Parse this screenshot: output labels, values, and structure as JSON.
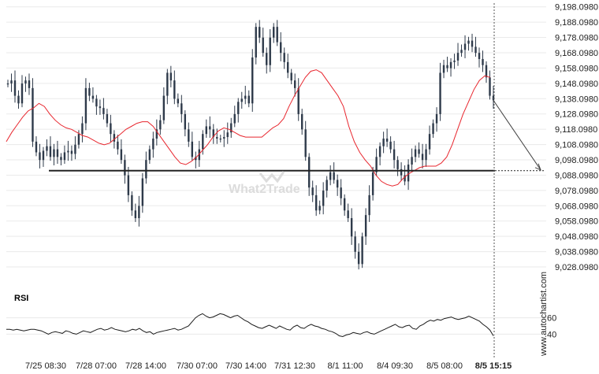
{
  "chart_data": [
    {
      "type": "candlestick",
      "x_tick_labels": [
        "7/25 08:30",
        "7/28 07:00",
        "7/28 14:00",
        "7/30 07:00",
        "7/30 14:00",
        "7/31 12:30",
        "8/1 11:00",
        "8/4 09:30",
        "8/5 08:00",
        "8/5 15:15"
      ],
      "y_tick_labels": [
        "9,198.0980",
        "9,188.0980",
        "9,178.0980",
        "9,168.0980",
        "9,158.0980",
        "9,148.0980",
        "9,138.0980",
        "9,128.0980",
        "9,118.0980",
        "9,108.0980",
        "9,098.0980",
        "9,088.0980",
        "9,078.0980",
        "9,068.0980",
        "9,058.0980",
        "9,048.0980",
        "9,038.0980",
        "9,028.0980"
      ],
      "ylim": [
        9024,
        9200
      ],
      "price_path": [
        9148,
        9150,
        9140,
        9135,
        9148,
        9150,
        9145,
        9110,
        9103,
        9098,
        9104,
        9107,
        9100,
        9105,
        9100,
        9098,
        9103,
        9104,
        9102,
        9108,
        9115,
        9122,
        9145,
        9140,
        9138,
        9133,
        9132,
        9128,
        9122,
        9115,
        9110,
        9105,
        9098,
        9088,
        9075,
        9065,
        9060,
        9068,
        9086,
        9098,
        9105,
        9112,
        9118,
        9124,
        9140,
        9155,
        9150,
        9138,
        9135,
        9128,
        9118,
        9110,
        9100,
        9098,
        9105,
        9115,
        9120,
        9118,
        9113,
        9112,
        9112,
        9113,
        9116,
        9122,
        9128,
        9136,
        9138,
        9140,
        9135,
        9165,
        9185,
        9178,
        9168,
        9160,
        9178,
        9185,
        9175,
        9168,
        9162,
        9155,
        9150,
        9145,
        9128,
        9118,
        9100,
        9080,
        9075,
        9065,
        9068,
        9078,
        9085,
        9090,
        9085,
        9080,
        9073,
        9065,
        9060,
        9048,
        9038,
        9030,
        9048,
        9062,
        9075,
        9090,
        9100,
        9107,
        9112,
        9110,
        9105,
        9098,
        9092,
        9088,
        9084,
        9095,
        9100,
        9105,
        9102,
        9098,
        9105,
        9115,
        9122,
        9128,
        9155,
        9160,
        9158,
        9162,
        9163,
        9168,
        9170,
        9174,
        9176,
        9172,
        9168,
        9164,
        9160,
        9152,
        9140,
        9137
      ],
      "moving_average": [
        9110,
        9116,
        9121,
        9126,
        9130,
        9132,
        9135,
        9133,
        9128,
        9124,
        9121,
        9119,
        9118,
        9116,
        9114,
        9113,
        9111,
        9109,
        9108,
        9109,
        9112,
        9115,
        9118,
        9120,
        9122,
        9123,
        9123,
        9120,
        9115,
        9110,
        9105,
        9100,
        9096,
        9095,
        9097,
        9100,
        9104,
        9108,
        9113,
        9117,
        9119,
        9118,
        9116,
        9114,
        9113,
        9113,
        9113,
        9113,
        9116,
        9119,
        9121,
        9125,
        9133,
        9140,
        9146,
        9152,
        9156,
        9157,
        9155,
        9150,
        9145,
        9140,
        9133,
        9120,
        9110,
        9103,
        9098,
        9094,
        9088,
        9084,
        9082,
        9081,
        9082,
        9086,
        9089,
        9091,
        9093,
        9094,
        9094,
        9094,
        9096,
        9100,
        9108,
        9118,
        9128,
        9136,
        9144,
        9150,
        9153,
        9152
      ],
      "support_level": 9091,
      "rsi": {
        "label": "RSI",
        "y_tick_labels": [
          "60",
          "40"
        ],
        "ylim": [
          25,
          75
        ],
        "values": [
          46,
          46,
          45,
          46,
          45,
          44,
          45,
          46,
          46,
          45,
          44,
          42,
          40,
          42,
          43,
          42,
          41,
          44,
          43,
          41,
          40,
          42,
          44,
          43,
          42,
          44,
          46,
          47,
          45,
          46,
          48,
          46,
          45,
          44,
          43,
          44,
          46,
          45,
          47,
          44,
          42,
          43,
          40,
          42,
          43,
          44,
          45,
          46,
          47,
          45,
          46,
          48,
          50,
          55,
          60,
          63,
          65,
          62,
          60,
          61,
          63,
          65,
          64,
          62,
          60,
          62,
          63,
          60,
          57,
          55,
          52,
          50,
          48,
          47,
          49,
          51,
          49,
          47,
          50,
          48,
          46,
          45,
          49,
          51,
          48,
          47,
          50,
          52,
          50,
          49,
          47,
          46,
          44,
          43,
          41,
          38,
          37,
          39,
          40,
          42,
          41,
          40,
          42,
          43,
          41,
          40,
          42,
          44,
          46,
          48,
          50,
          52,
          49,
          48,
          50,
          51,
          47,
          46,
          50,
          52,
          55,
          57,
          56,
          58,
          57,
          59,
          60,
          61,
          59,
          58,
          59,
          60,
          62,
          60,
          58,
          56,
          52,
          49,
          45,
          38
        ]
      }
    }
  ],
  "watermark": "What2Trade",
  "side_text": "www.autochartist.com",
  "colors": {
    "candle": "#2e3a4a",
    "moving_average": "#e8262e",
    "support": "#222222",
    "grid": "#eaeaea",
    "rsi_line": "#1a1a1a"
  }
}
